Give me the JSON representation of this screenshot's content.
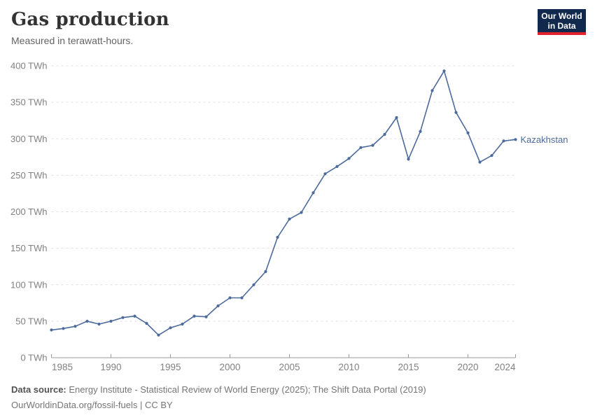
{
  "header": {
    "title": "Gas production",
    "subtitle": "Measured in terawatt-hours.",
    "logo_line1": "Our World",
    "logo_line2": "in Data"
  },
  "chart_data": {
    "type": "line",
    "title": "Gas production",
    "subtitle": "Measured in terawatt-hours.",
    "xlabel": "",
    "ylabel": "TWh",
    "xlim": [
      1985,
      2024
    ],
    "ylim": [
      0,
      400
    ],
    "grid": "horizontal-dashed",
    "legend_position": "end-of-line-label",
    "x": [
      1985,
      1986,
      1987,
      1988,
      1989,
      1990,
      1991,
      1992,
      1993,
      1994,
      1995,
      1996,
      1997,
      1998,
      1999,
      2000,
      2001,
      2002,
      2003,
      2004,
      2005,
      2006,
      2007,
      2008,
      2009,
      2010,
      2011,
      2012,
      2013,
      2014,
      2015,
      2016,
      2017,
      2018,
      2019,
      2020,
      2021,
      2022,
      2023,
      2024
    ],
    "series": [
      {
        "name": "Kazakhstan",
        "color": "#4C6A9C",
        "values": [
          38,
          40,
          43,
          50,
          46,
          50,
          55,
          57,
          47,
          31,
          41,
          46,
          57,
          56,
          71,
          82,
          82,
          100,
          118,
          165,
          190,
          199,
          226,
          252,
          262,
          273,
          288,
          291,
          306,
          329,
          272,
          310,
          366,
          393,
          336,
          308,
          268,
          277,
          297,
          299
        ]
      }
    ],
    "ytick_values": [
      0,
      50,
      100,
      150,
      200,
      250,
      300,
      350,
      400
    ],
    "ytick_labels": [
      "0 TWh",
      "50 TWh",
      "100 TWh",
      "150 TWh",
      "200 TWh",
      "250 TWh",
      "300 TWh",
      "350 TWh",
      "400 TWh"
    ],
    "xtick_values": [
      1985,
      1990,
      1995,
      2000,
      2005,
      2010,
      2015,
      2020,
      2024
    ],
    "xtick_labels": [
      "1985",
      "1990",
      "1995",
      "2000",
      "2005",
      "2010",
      "2015",
      "2020",
      "2024"
    ],
    "end_label": "Kazakhstan"
  },
  "footer": {
    "source_label": "Data source:",
    "source_text": "Energy Institute - Statistical Review of World Energy (2025); The Shift Data Portal (2019)",
    "note_text": "OurWorldinData.org/fossil-fuels | CC BY"
  },
  "colors": {
    "series": "#4C6A9C",
    "gridline": "#e0e0e0",
    "axis": "#9a9a9a",
    "tick_label": "#818181",
    "logo_bg": "#12294e",
    "logo_bar": "#e0232c",
    "title": "#333333",
    "subtitle": "#646464"
  }
}
